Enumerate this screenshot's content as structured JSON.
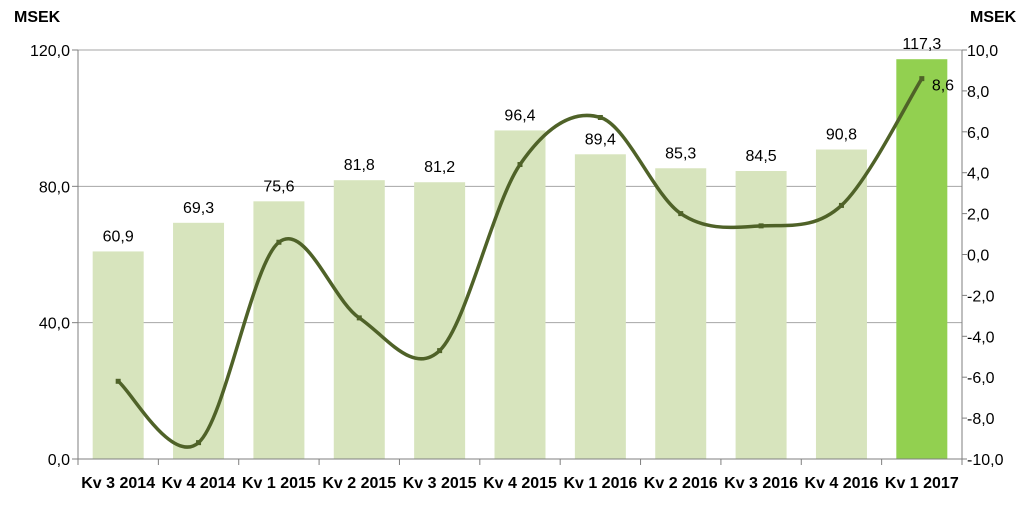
{
  "chart_data": {
    "type": "bar",
    "categories": [
      "Kv 3 2014",
      "Kv 4 2014",
      "Kv 1 2015",
      "Kv 2 2015",
      "Kv 3 2015",
      "Kv 4 2015",
      "Kv 1 2016",
      "Kv 2 2016",
      "Kv 3 2016",
      "Kv 4 2016",
      "Kv 1 2017"
    ],
    "series": [
      {
        "type": "bar",
        "axis": "left",
        "values": [
          60.9,
          69.3,
          75.6,
          81.8,
          81.2,
          96.4,
          89.4,
          85.3,
          84.5,
          90.8,
          117.3
        ],
        "labels": [
          "60,9",
          "69,3",
          "75,6",
          "81,8",
          "81,2",
          "96,4",
          "89,4",
          "85,3",
          "84,5",
          "90,8",
          "117,3"
        ],
        "color": "#d7e4bd",
        "highlight_color": "#92d050",
        "highlight_index": 10
      },
      {
        "type": "line",
        "axis": "right",
        "smooth": true,
        "values": [
          -6.2,
          -9.2,
          0.6,
          -3.1,
          -4.7,
          4.4,
          6.7,
          2.0,
          1.4,
          2.4,
          8.6
        ],
        "labels": [
          "",
          "",
          "",
          "",
          "",
          "",
          "",
          "",
          "",
          "",
          "8,6"
        ],
        "color": "#4f6228"
      }
    ],
    "y_left": {
      "title": "MSEK",
      "range": [
        0,
        120
      ],
      "ticks": [
        0,
        40,
        80,
        120
      ],
      "tick_labels": [
        "0,0",
        "40,0",
        "80,0",
        "120,0"
      ],
      "gridlines": true
    },
    "y_right": {
      "title": "MSEK",
      "range": [
        -10,
        10
      ],
      "ticks": [
        -10,
        -8,
        -6,
        -4,
        -2,
        0,
        2,
        4,
        6,
        8,
        10
      ],
      "tick_labels": [
        "-10,0",
        "-8,0",
        "-6,0",
        "-4,0",
        "-2,0",
        "0,0",
        "2,0",
        "4,0",
        "6,0",
        "8,0",
        "10,0"
      ]
    },
    "legend": "none"
  }
}
